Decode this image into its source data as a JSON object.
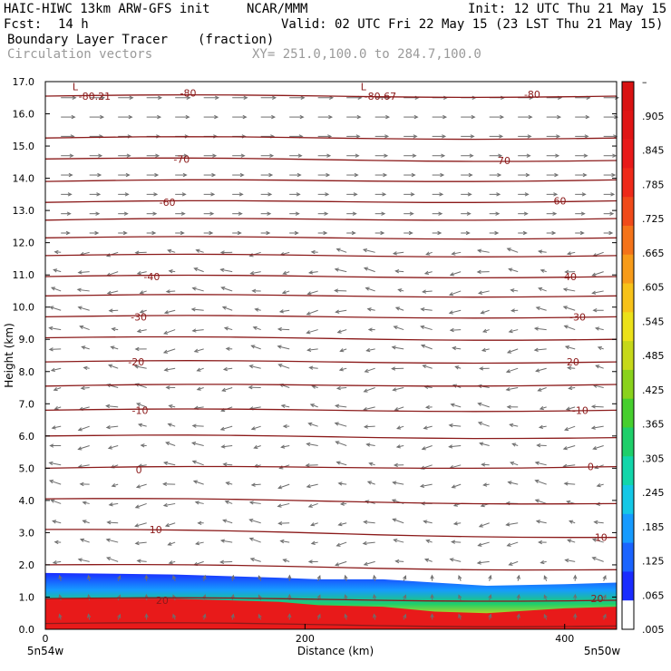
{
  "header": {
    "model": "HAIC-HIWC 13km ARW-GFS init",
    "org": "NCAR/MMM",
    "init": "Init: 12 UTC Thu 21 May 15",
    "fcst_label": "Fcst:",
    "fcst_value": "14 h",
    "valid": "Valid: 02 UTC Fri 22 May 15 (23 LST Thu 21 May 15)",
    "field": "Boundary Layer Tracer",
    "units": "(fraction)",
    "overlay": "Circulation vectors",
    "xy": "XY= 251.0,100.0 to 284.7,100.0"
  },
  "colors": {
    "contour": "#8b1a1a",
    "vector": "#6e6e6e",
    "colorbar": [
      "#ffffff",
      "#1a2cff",
      "#1b64ff",
      "#169bff",
      "#14c8e6",
      "#12d6aa",
      "#1ecf6a",
      "#46cf2e",
      "#8ad21c",
      "#c6d81a",
      "#ece11a",
      "#f7c21a",
      "#f79b1a",
      "#f4731a",
      "#f04a1a",
      "#ee2a1a",
      "#e81a1a",
      "#e01515",
      "#d81212"
    ]
  },
  "chart_data": {
    "type": "heatmap",
    "ylabel": "Height (km)",
    "xlabel": "Distance (km)",
    "ylim": [
      0,
      17
    ],
    "xlim": [
      0,
      440
    ],
    "y_ticks": [
      "0.0",
      "1.0",
      "2.0",
      "3.0",
      "4.0",
      "5.0",
      "6.0",
      "7.0",
      "8.0",
      "9.0",
      "10.0",
      "11.0",
      "12.0",
      "13.0",
      "14.0",
      "15.0",
      "16.0",
      "17.0"
    ],
    "x_ticks": [
      "0",
      "200",
      "400"
    ],
    "x_ends": [
      "5n54w",
      "5n50w"
    ],
    "colorbar_labels": [
      "–",
      ".905",
      ".845",
      ".785",
      ".725",
      ".665",
      ".605",
      ".545",
      ".485",
      ".425",
      ".365",
      ".305",
      ".245",
      ".185",
      ".125",
      ".065",
      ".005"
    ],
    "contour_labels": [
      {
        "text": "L",
        "x": 23,
        "y": 16.85
      },
      {
        "text": "-80.21",
        "x": 38,
        "y": 16.55
      },
      {
        "text": "-80",
        "x": 110,
        "y": 16.65
      },
      {
        "text": "L",
        "x": 245,
        "y": 16.85
      },
      {
        "text": "-80.67",
        "x": 258,
        "y": 16.55
      },
      {
        "text": "-80",
        "x": 375,
        "y": 16.6
      },
      {
        "text": "-70",
        "x": 105,
        "y": 14.6
      },
      {
        "text": "-70",
        "x": 352,
        "y": 14.55
      },
      {
        "text": "-60",
        "x": 94,
        "y": 13.25
      },
      {
        "text": "-60",
        "x": 395,
        "y": 13.3
      },
      {
        "text": "-40",
        "x": 82,
        "y": 10.95
      },
      {
        "text": "-40",
        "x": 403,
        "y": 10.95
      },
      {
        "text": "-30",
        "x": 72,
        "y": 9.7
      },
      {
        "text": "-30",
        "x": 410,
        "y": 9.7
      },
      {
        "text": "-20",
        "x": 70,
        "y": 8.3
      },
      {
        "text": "-20",
        "x": 405,
        "y": 8.3
      },
      {
        "text": "-10",
        "x": 73,
        "y": 6.8
      },
      {
        "text": "-10",
        "x": 412,
        "y": 6.8
      },
      {
        "text": "0",
        "x": 72,
        "y": 4.95
      },
      {
        "text": "0",
        "x": 420,
        "y": 5.05
      },
      {
        "text": "10",
        "x": 85,
        "y": 3.1
      },
      {
        "text": "10",
        "x": 428,
        "y": 2.85
      },
      {
        "text": "20",
        "x": 90,
        "y": 0.9
      },
      {
        "text": "20",
        "x": 425,
        "y": 0.95
      }
    ],
    "contour_levels_km": [
      {
        "y0": 0.18,
        "y1": 0.1
      },
      {
        "y0": 0.95,
        "y1": 0.9
      },
      {
        "y0": 2.0,
        "y1": 1.85
      },
      {
        "y0": 3.1,
        "y1": 2.85
      },
      {
        "y0": 4.05,
        "y1": 3.9
      },
      {
        "y0": 5.0,
        "y1": 5.05
      },
      {
        "y0": 6.0,
        "y1": 5.95
      },
      {
        "y0": 6.8,
        "y1": 6.8
      },
      {
        "y0": 7.55,
        "y1": 7.6
      },
      {
        "y0": 8.3,
        "y1": 8.3
      },
      {
        "y0": 9.05,
        "y1": 9.0
      },
      {
        "y0": 9.7,
        "y1": 9.7
      },
      {
        "y0": 10.35,
        "y1": 10.35
      },
      {
        "y0": 10.95,
        "y1": 10.95
      },
      {
        "y0": 11.6,
        "y1": 11.6
      },
      {
        "y0": 12.15,
        "y1": 12.15
      },
      {
        "y0": 12.7,
        "y1": 12.75
      },
      {
        "y0": 13.25,
        "y1": 13.3
      },
      {
        "y0": 13.9,
        "y1": 13.95
      },
      {
        "y0": 14.6,
        "y1": 14.55
      },
      {
        "y0": 15.25,
        "y1": 15.25
      },
      {
        "y0": 16.55,
        "y1": 16.55
      }
    ],
    "bl_top_km": [
      {
        "x": 0,
        "blue": 1.75,
        "green": 1.15,
        "red": 0.95
      },
      {
        "x": 100,
        "blue": 1.7,
        "green": 1.1,
        "red": 0.95
      },
      {
        "x": 180,
        "blue": 1.6,
        "green": 1.05,
        "red": 0.85
      },
      {
        "x": 210,
        "blue": 1.55,
        "green": 1.0,
        "red": 0.75
      },
      {
        "x": 260,
        "blue": 1.55,
        "green": 1.0,
        "red": 0.7
      },
      {
        "x": 300,
        "blue": 1.45,
        "green": 0.85,
        "red": 0.55
      },
      {
        "x": 340,
        "blue": 1.35,
        "green": 0.8,
        "red": 0.5
      },
      {
        "x": 400,
        "blue": 1.4,
        "green": 0.9,
        "red": 0.65
      },
      {
        "x": 440,
        "blue": 1.45,
        "green": 0.95,
        "red": 0.7
      }
    ]
  }
}
